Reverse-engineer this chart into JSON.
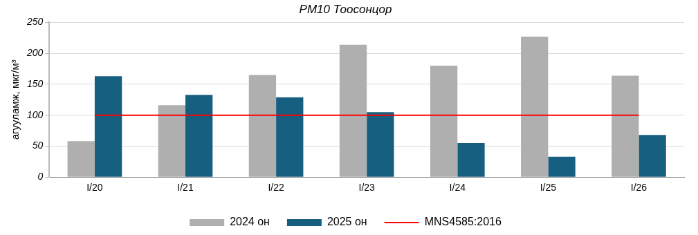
{
  "chart_data": {
    "type": "bar",
    "title": "PM10 Тоосонцор",
    "ylabel": "агууламж, мкг/м³",
    "categories": [
      "I/20",
      "I/21",
      "I/22",
      "I/23",
      "I/24",
      "I/25",
      "I/26"
    ],
    "series": [
      {
        "name": "2024 он",
        "color": "#afafaf",
        "values": [
          58,
          116,
          165,
          214,
          180,
          227,
          164
        ]
      },
      {
        "name": "2025 он",
        "color": "#165f80",
        "values": [
          163,
          133,
          129,
          105,
          55,
          33,
          68
        ]
      },
      {
        "name": "MNS4585:2016",
        "type": "line",
        "color": "#ff0000",
        "values": [
          100,
          100,
          100,
          100,
          100,
          100,
          100
        ],
        "marker": "none"
      }
    ],
    "ylim": [
      0,
      250
    ],
    "yticks": [
      0,
      50,
      100,
      150,
      200,
      250
    ],
    "grid": "y",
    "legend": "bottom"
  }
}
